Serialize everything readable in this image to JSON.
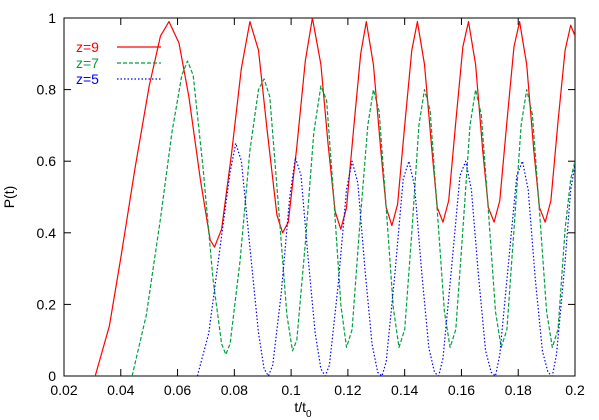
{
  "chart_data": {
    "type": "line",
    "xlabel_main": "t/t",
    "xlabel_sub": "0",
    "ylabel": "P(t)",
    "xlim": [
      0.02,
      0.2
    ],
    "ylim": [
      0,
      1
    ],
    "xticks": [
      0.02,
      0.04,
      0.06,
      0.08,
      0.1,
      0.12,
      0.14,
      0.16,
      0.18,
      0.2
    ],
    "xtick_labels": [
      "0.02",
      "0.04",
      "0.06",
      "0.08",
      "0.1",
      "0.12",
      "0.14",
      "0.16",
      "0.18",
      "0.2"
    ],
    "yticks": [
      0,
      0.2,
      0.4,
      0.6,
      0.8,
      1
    ],
    "ytick_labels": [
      "0",
      "0.2",
      "0.4",
      "0.6",
      "0.8",
      "1"
    ],
    "grid": false,
    "legend_position": "top-left",
    "series": [
      {
        "name": "z=9",
        "color": "#ff0000",
        "dash": "solid",
        "points": [
          [
            0.031,
            0.0
          ],
          [
            0.036,
            0.14
          ],
          [
            0.04,
            0.33
          ],
          [
            0.045,
            0.58
          ],
          [
            0.05,
            0.81
          ],
          [
            0.054,
            0.95
          ],
          [
            0.057,
            0.99
          ],
          [
            0.0605,
            0.93
          ],
          [
            0.064,
            0.78
          ],
          [
            0.068,
            0.55
          ],
          [
            0.0715,
            0.38
          ],
          [
            0.073,
            0.36
          ],
          [
            0.0755,
            0.41
          ],
          [
            0.079,
            0.62
          ],
          [
            0.0825,
            0.86
          ],
          [
            0.0855,
            0.99
          ],
          [
            0.0885,
            0.91
          ],
          [
            0.0915,
            0.69
          ],
          [
            0.095,
            0.45
          ],
          [
            0.097,
            0.4
          ],
          [
            0.099,
            0.43
          ],
          [
            0.102,
            0.64
          ],
          [
            0.105,
            0.88
          ],
          [
            0.1075,
            1.0
          ],
          [
            0.1105,
            0.87
          ],
          [
            0.113,
            0.65
          ],
          [
            0.1155,
            0.46
          ],
          [
            0.1175,
            0.41
          ],
          [
            0.1195,
            0.47
          ],
          [
            0.122,
            0.69
          ],
          [
            0.1245,
            0.9
          ],
          [
            0.1265,
            0.99
          ],
          [
            0.129,
            0.87
          ],
          [
            0.1315,
            0.64
          ],
          [
            0.1335,
            0.47
          ],
          [
            0.1355,
            0.42
          ],
          [
            0.1375,
            0.48
          ],
          [
            0.14,
            0.7
          ],
          [
            0.1425,
            0.91
          ],
          [
            0.1445,
            0.99
          ],
          [
            0.147,
            0.87
          ],
          [
            0.1495,
            0.64
          ],
          [
            0.1515,
            0.47
          ],
          [
            0.1535,
            0.43
          ],
          [
            0.1555,
            0.49
          ],
          [
            0.158,
            0.71
          ],
          [
            0.1605,
            0.92
          ],
          [
            0.1625,
            0.99
          ],
          [
            0.165,
            0.87
          ],
          [
            0.1675,
            0.63
          ],
          [
            0.1695,
            0.47
          ],
          [
            0.1715,
            0.43
          ],
          [
            0.1735,
            0.49
          ],
          [
            0.176,
            0.71
          ],
          [
            0.1785,
            0.92
          ],
          [
            0.1805,
            0.99
          ],
          [
            0.183,
            0.87
          ],
          [
            0.1855,
            0.63
          ],
          [
            0.1875,
            0.47
          ],
          [
            0.1895,
            0.43
          ],
          [
            0.1915,
            0.49
          ],
          [
            0.194,
            0.71
          ],
          [
            0.1965,
            0.91
          ],
          [
            0.1985,
            0.98
          ],
          [
            0.2,
            0.95
          ]
        ]
      },
      {
        "name": "z=7",
        "color": "#00a040",
        "dash": "dashed",
        "points": [
          [
            0.044,
            0.0
          ],
          [
            0.049,
            0.17
          ],
          [
            0.054,
            0.44
          ],
          [
            0.058,
            0.68
          ],
          [
            0.0615,
            0.84
          ],
          [
            0.0635,
            0.88
          ],
          [
            0.0655,
            0.84
          ],
          [
            0.069,
            0.58
          ],
          [
            0.0725,
            0.27
          ],
          [
            0.0755,
            0.09
          ],
          [
            0.077,
            0.06
          ],
          [
            0.0785,
            0.09
          ],
          [
            0.082,
            0.32
          ],
          [
            0.0855,
            0.63
          ],
          [
            0.0885,
            0.8
          ],
          [
            0.0905,
            0.83
          ],
          [
            0.0925,
            0.78
          ],
          [
            0.0955,
            0.48
          ],
          [
            0.0985,
            0.17
          ],
          [
            0.1005,
            0.07
          ],
          [
            0.102,
            0.1
          ],
          [
            0.105,
            0.37
          ],
          [
            0.108,
            0.68
          ],
          [
            0.1105,
            0.81
          ],
          [
            0.1125,
            0.77
          ],
          [
            0.115,
            0.5
          ],
          [
            0.1175,
            0.2
          ],
          [
            0.1195,
            0.08
          ],
          [
            0.1215,
            0.13
          ],
          [
            0.124,
            0.4
          ],
          [
            0.127,
            0.7
          ],
          [
            0.129,
            0.8
          ],
          [
            0.131,
            0.74
          ],
          [
            0.1335,
            0.47
          ],
          [
            0.136,
            0.19
          ],
          [
            0.138,
            0.08
          ],
          [
            0.14,
            0.13
          ],
          [
            0.1425,
            0.4
          ],
          [
            0.145,
            0.7
          ],
          [
            0.147,
            0.8
          ],
          [
            0.149,
            0.74
          ],
          [
            0.1515,
            0.46
          ],
          [
            0.154,
            0.18
          ],
          [
            0.156,
            0.08
          ],
          [
            0.158,
            0.13
          ],
          [
            0.1605,
            0.41
          ],
          [
            0.163,
            0.7
          ],
          [
            0.165,
            0.8
          ],
          [
            0.167,
            0.73
          ],
          [
            0.1695,
            0.46
          ],
          [
            0.172,
            0.18
          ],
          [
            0.174,
            0.08
          ],
          [
            0.176,
            0.13
          ],
          [
            0.1785,
            0.41
          ],
          [
            0.181,
            0.7
          ],
          [
            0.183,
            0.8
          ],
          [
            0.185,
            0.73
          ],
          [
            0.1875,
            0.46
          ],
          [
            0.19,
            0.18
          ],
          [
            0.192,
            0.08
          ],
          [
            0.194,
            0.13
          ],
          [
            0.1965,
            0.41
          ],
          [
            0.1985,
            0.55
          ],
          [
            0.2,
            0.6
          ]
        ]
      },
      {
        "name": "z=5",
        "color": "#0000ff",
        "dash": "dotted",
        "points": [
          [
            0.067,
            0.0
          ],
          [
            0.071,
            0.12
          ],
          [
            0.075,
            0.36
          ],
          [
            0.0785,
            0.57
          ],
          [
            0.0805,
            0.65
          ],
          [
            0.0825,
            0.6
          ],
          [
            0.0855,
            0.36
          ],
          [
            0.0885,
            0.12
          ],
          [
            0.0905,
            0.02
          ],
          [
            0.092,
            0.0
          ],
          [
            0.0935,
            0.03
          ],
          [
            0.0965,
            0.23
          ],
          [
            0.0995,
            0.5
          ],
          [
            0.1015,
            0.61
          ],
          [
            0.1035,
            0.56
          ],
          [
            0.106,
            0.33
          ],
          [
            0.1085,
            0.12
          ],
          [
            0.1105,
            0.02
          ],
          [
            0.112,
            0.0
          ],
          [
            0.1135,
            0.03
          ],
          [
            0.1165,
            0.25
          ],
          [
            0.1195,
            0.52
          ],
          [
            0.1215,
            0.6
          ],
          [
            0.1235,
            0.54
          ],
          [
            0.126,
            0.3
          ],
          [
            0.1285,
            0.09
          ],
          [
            0.1305,
            0.01
          ],
          [
            0.132,
            0.0
          ],
          [
            0.1335,
            0.04
          ],
          [
            0.1365,
            0.28
          ],
          [
            0.1395,
            0.55
          ],
          [
            0.1415,
            0.6
          ],
          [
            0.1435,
            0.53
          ],
          [
            0.146,
            0.29
          ],
          [
            0.1485,
            0.08
          ],
          [
            0.1505,
            0.01
          ],
          [
            0.152,
            0.0
          ],
          [
            0.1535,
            0.05
          ],
          [
            0.1565,
            0.3
          ],
          [
            0.1595,
            0.56
          ],
          [
            0.1615,
            0.6
          ],
          [
            0.1635,
            0.52
          ],
          [
            0.166,
            0.28
          ],
          [
            0.1685,
            0.07
          ],
          [
            0.1705,
            0.01
          ],
          [
            0.172,
            0.0
          ],
          [
            0.1735,
            0.06
          ],
          [
            0.1765,
            0.31
          ],
          [
            0.1795,
            0.56
          ],
          [
            0.1815,
            0.6
          ],
          [
            0.1835,
            0.52
          ],
          [
            0.186,
            0.27
          ],
          [
            0.1885,
            0.07
          ],
          [
            0.1905,
            0.01
          ],
          [
            0.192,
            0.0
          ],
          [
            0.1935,
            0.06
          ],
          [
            0.1965,
            0.32
          ],
          [
            0.1985,
            0.52
          ],
          [
            0.2,
            0.59
          ]
        ]
      }
    ]
  }
}
